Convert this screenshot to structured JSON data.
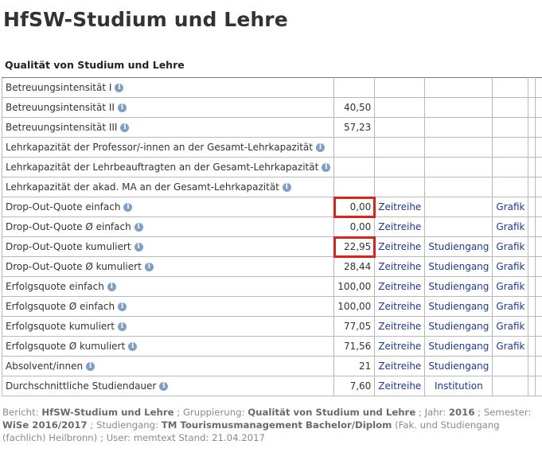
{
  "title": "HfSW-Studium und Lehre",
  "caption": "Qualität von Studium und Lehre",
  "rows": [
    {
      "label": "Betreuungsintensität I",
      "value": "",
      "link1": "",
      "link2": "",
      "link3": ""
    },
    {
      "label": "Betreuungsintensität II",
      "value": "40,50",
      "link1": "",
      "link2": "",
      "link3": ""
    },
    {
      "label": "Betreuungsintensität III",
      "value": "57,23",
      "link1": "",
      "link2": "",
      "link3": ""
    },
    {
      "label": "Lehrkapazität der Professor/-innen an der Gesamt-Lehrkapazität",
      "value": "",
      "link1": "",
      "link2": "",
      "link3": ""
    },
    {
      "label": "Lehrkapazität der Lehrbeauftragten an der Gesamt-Lehrkapazität",
      "value": "",
      "link1": "",
      "link2": "",
      "link3": ""
    },
    {
      "label": "Lehrkapazität der akad. MA an der Gesamt-Lehrkapazität",
      "value": "",
      "link1": "",
      "link2": "",
      "link3": ""
    },
    {
      "label": "Drop-Out-Quote einfach",
      "value": "0,00",
      "link1": "Zeitreihe",
      "link2": "",
      "link3": "Grafik"
    },
    {
      "label": "Drop-Out-Quote Ø einfach",
      "value": "0,00",
      "link1": "Zeitreihe",
      "link2": "",
      "link3": "Grafik"
    },
    {
      "label": "Drop-Out-Quote kumuliert",
      "value": "22,95",
      "link1": "Zeitreihe",
      "link2": "Studiengang",
      "link3": "Grafik"
    },
    {
      "label": "Drop-Out-Quote Ø kumuliert",
      "value": "28,44",
      "link1": "Zeitreihe",
      "link2": "Studiengang",
      "link3": "Grafik"
    },
    {
      "label": "Erfolgsquote einfach",
      "value": "100,00",
      "link1": "Zeitreihe",
      "link2": "Studiengang",
      "link3": "Grafik"
    },
    {
      "label": "Erfolgsquote Ø einfach",
      "value": "100,00",
      "link1": "Zeitreihe",
      "link2": "Studiengang",
      "link3": "Grafik"
    },
    {
      "label": "Erfolgsquote kumuliert",
      "value": "77,05",
      "link1": "Zeitreihe",
      "link2": "Studiengang",
      "link3": "Grafik"
    },
    {
      "label": "Erfolgsquote Ø kumuliert",
      "value": "71,56",
      "link1": "Zeitreihe",
      "link2": "Studiengang",
      "link3": "Grafik"
    },
    {
      "label": "Absolvent/innen",
      "value": "21",
      "link1": "Zeitreihe",
      "link2": "Studiengang",
      "link3": ""
    },
    {
      "label": "Durchschnittliche Studiendauer",
      "value": "7,60",
      "link1": "Zeitreihe",
      "link2": "Institution",
      "link3": ""
    }
  ],
  "info_icon_glyph": "i",
  "highlight_color": "#e32119",
  "link_color": "#1a37a6",
  "footer": {
    "bericht_label": "Bericht:",
    "bericht_value": "HfSW-Studium und Lehre",
    "sep1": "; Gruppierung:",
    "gruppierung_value": "Qualität von Studium und Lehre",
    "sep2": "; Jahr:",
    "jahr_value": "2016",
    "sep3": "; Semester:",
    "semester_value": "WiSe 2016/2017",
    "sep4": "; Studiengang:",
    "studiengang_value": "TM Tourismusmanagement Bachelor/Diplom",
    "tail": "(Fak. und Studiengang (fachlich) Heilbronn) ; User: memtext  Stand: 21.04.2017"
  }
}
